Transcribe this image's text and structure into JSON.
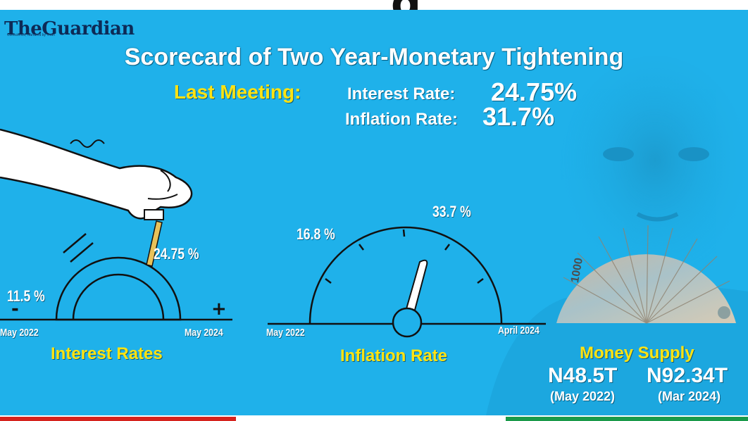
{
  "header": {
    "top_cropped_glyph": "g",
    "logo_text": "TheGuardian",
    "logo_tagline": "Conscience, Nurtured by Truth",
    "title": "Scorecard of Two Year-Monetary Tightening"
  },
  "last_meeting": {
    "label": "Last Meeting:",
    "interest_label": "Interest Rate:",
    "interest_value": "24.75%",
    "inflation_label": "Inflation Rate:",
    "inflation_value": "31.7%"
  },
  "interest_gauge": {
    "start_value": "11.5 %",
    "end_value": "24.75 %",
    "minus_sign": "-",
    "plus_sign": "+",
    "start_date": "May 2022",
    "end_date": "May 2024",
    "label": "Interest Rates"
  },
  "inflation_gauge": {
    "start_value": "16.8 %",
    "end_value": "33.7 %",
    "start_date": "May 2022",
    "end_date": "April 2024",
    "label": "Inflation Rate"
  },
  "money_supply": {
    "label": "Money Supply",
    "value_1": "N48.5T",
    "date_1": "(May 2022)",
    "value_2": "N92.34T",
    "date_2": "(Mar 2024)",
    "banknote_denomination": "1000"
  },
  "colors": {
    "background": "#1fb1ea",
    "accent_yellow": "#ffe312",
    "gauge_stroke": "#1a1a1a",
    "lever": "#e8c25a",
    "stripe_red": "#d6231e",
    "stripe_green": "#1a9a4a"
  }
}
